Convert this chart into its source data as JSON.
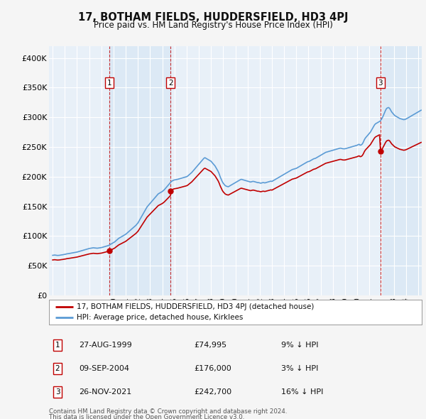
{
  "title": "17, BOTHAM FIELDS, HUDDERSFIELD, HD3 4PJ",
  "subtitle": "Price paid vs. HM Land Registry's House Price Index (HPI)",
  "footer1": "Contains HM Land Registry data © Crown copyright and database right 2024.",
  "footer2": "This data is licensed under the Open Government Licence v3.0.",
  "legend_line1": "17, BOTHAM FIELDS, HUDDERSFIELD, HD3 4PJ (detached house)",
  "legend_line2": "HPI: Average price, detached house, Kirklees",
  "transactions": [
    {
      "num": 1,
      "date": "27-AUG-1999",
      "price": 74995,
      "pct": "9% ↓ HPI",
      "year": 1999.65
    },
    {
      "num": 2,
      "date": "09-SEP-2004",
      "price": 176000,
      "pct": "3% ↓ HPI",
      "year": 2004.69
    },
    {
      "num": 3,
      "date": "26-NOV-2021",
      "price": 242700,
      "pct": "16% ↓ HPI",
      "year": 2021.9
    }
  ],
  "hpi_color": "#5b9bd5",
  "price_color": "#c00000",
  "shade_color": "#dce9f5",
  "background_color": "#f5f5f5",
  "plot_background": "#e8f0f8",
  "ylim": [
    0,
    420000
  ],
  "yticks": [
    0,
    50000,
    100000,
    150000,
    200000,
    250000,
    300000,
    350000,
    400000
  ],
  "ytick_labels": [
    "£0",
    "£50K",
    "£100K",
    "£150K",
    "£200K",
    "£250K",
    "£300K",
    "£350K",
    "£400K"
  ],
  "xlim_start": 1994.7,
  "xlim_end": 2025.3
}
